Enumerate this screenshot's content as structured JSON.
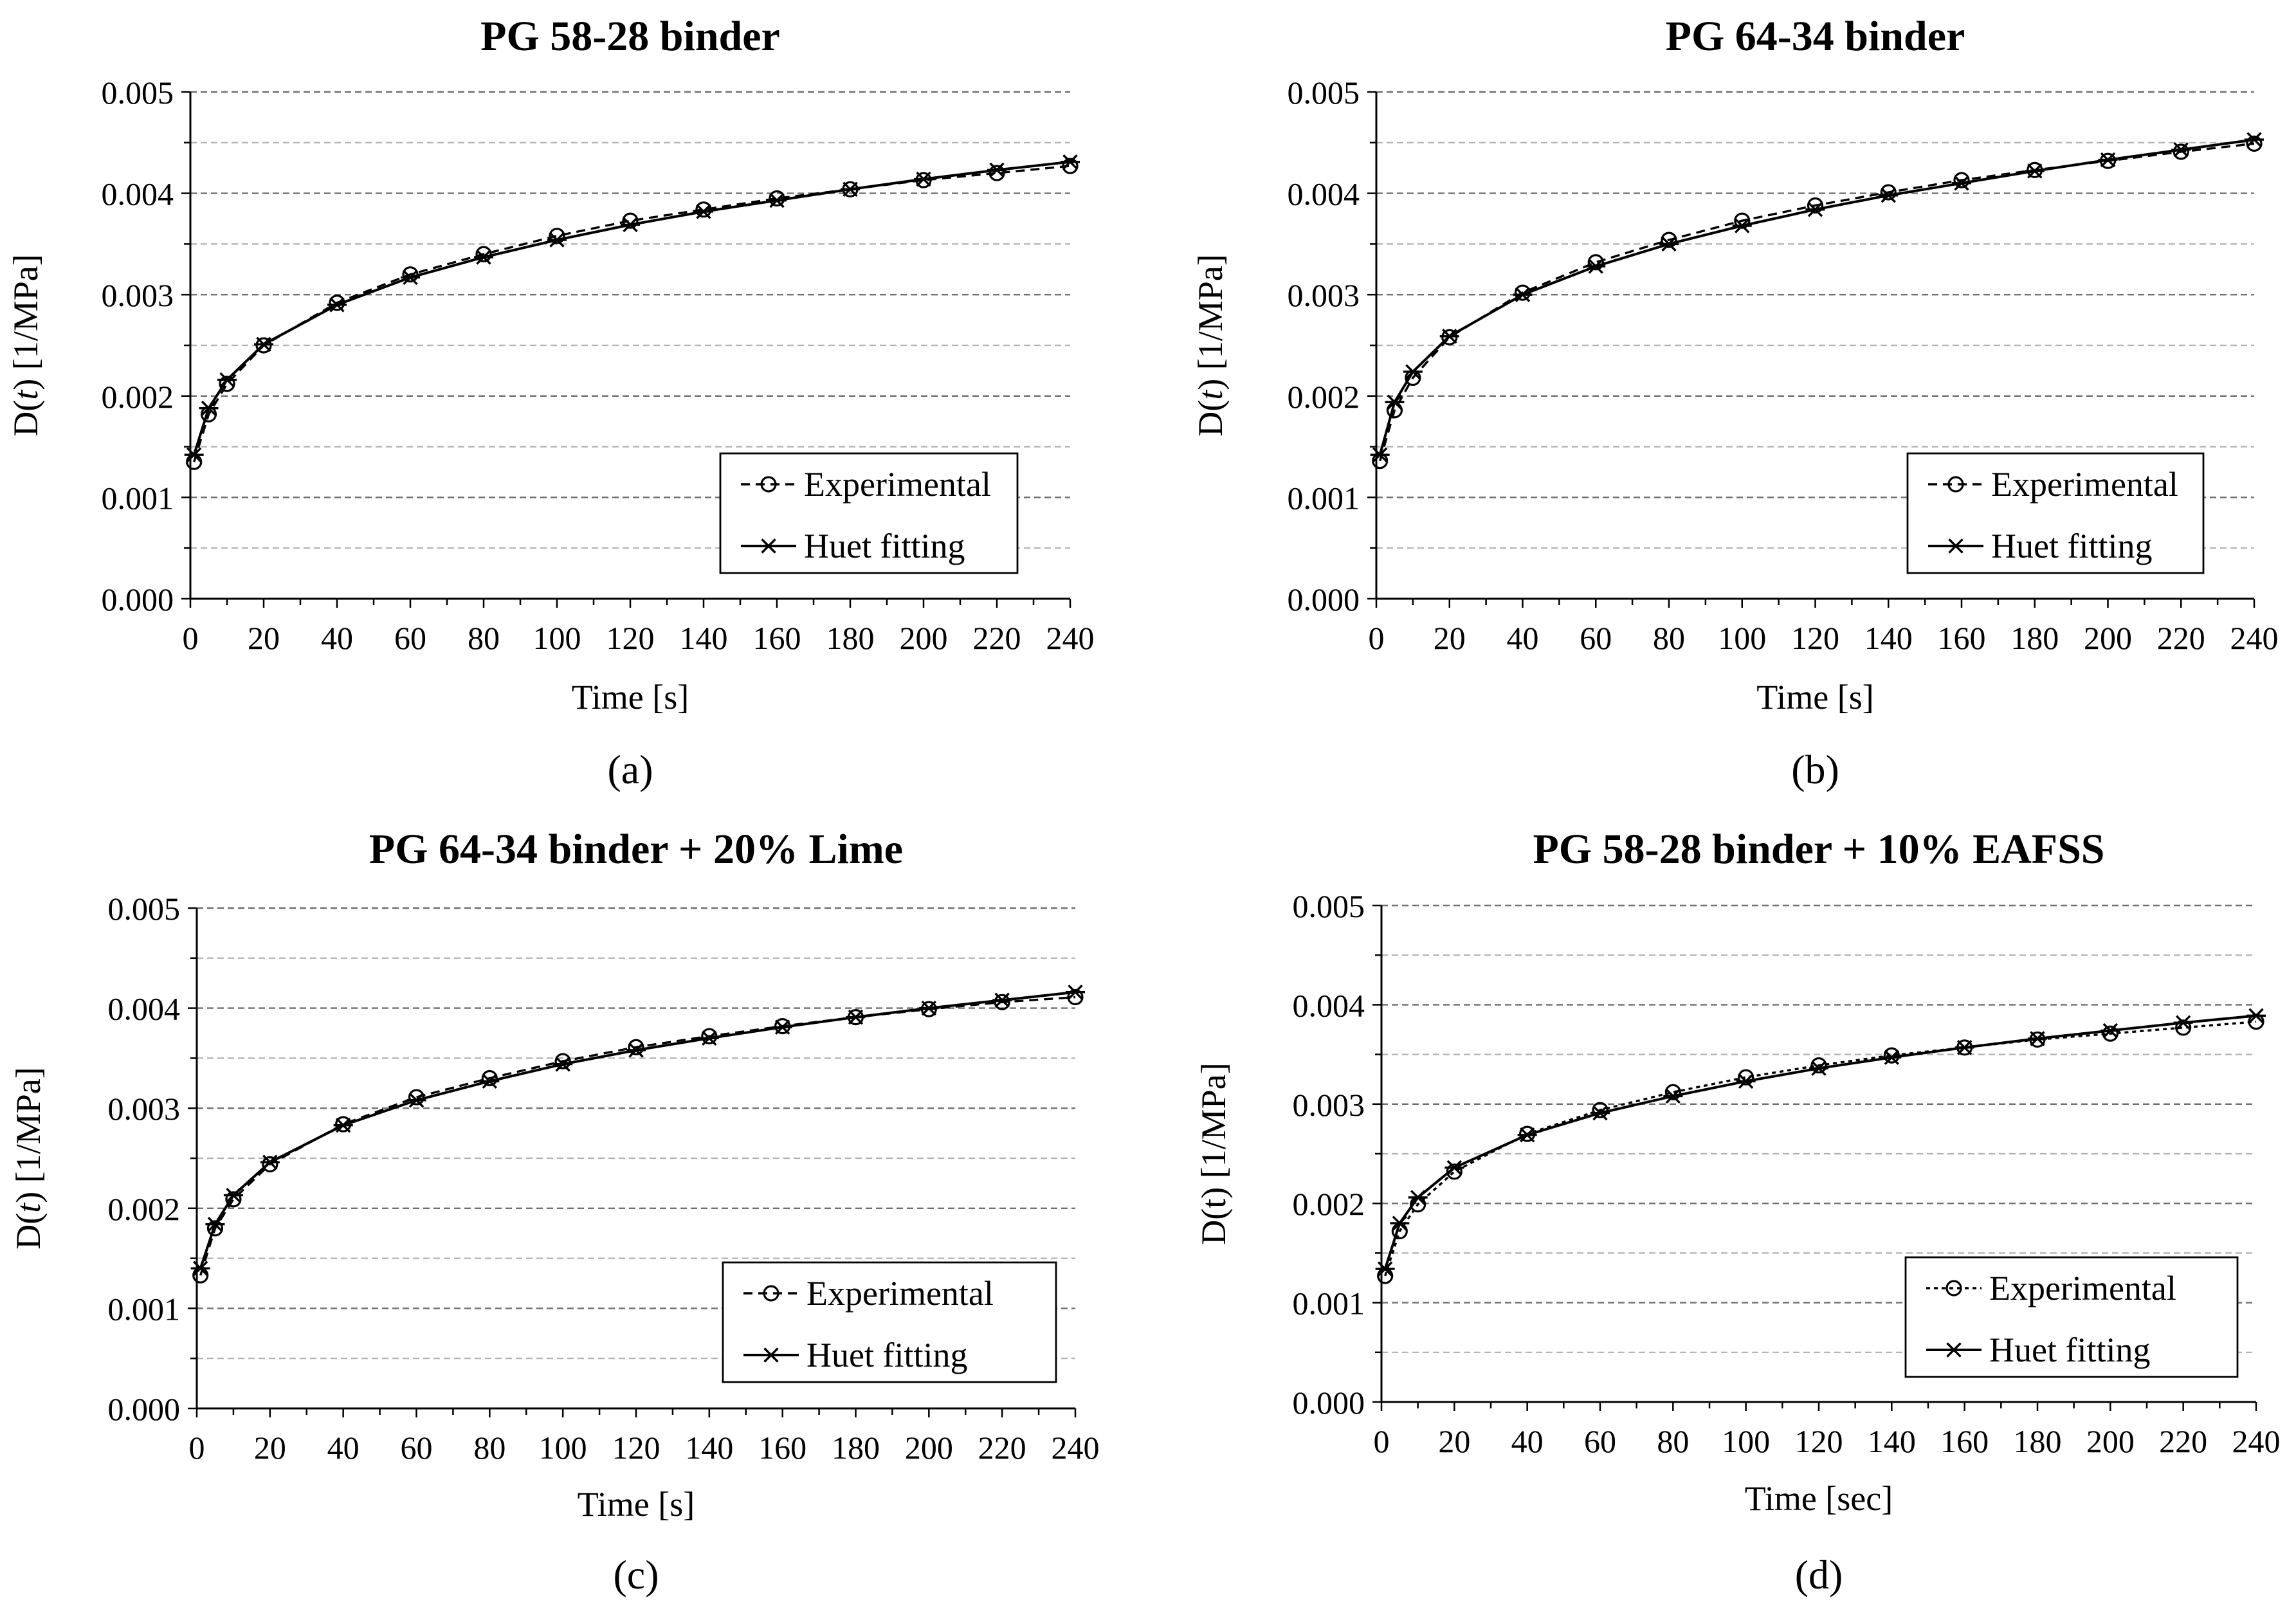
{
  "figure": {
    "description_note": "Four creep compliance panels",
    "colors": {
      "axis": "#000000",
      "major_grid": "#6f6f6f",
      "minor_grid": "#b0b0b0",
      "series": "#000000",
      "background": "#ffffff"
    }
  },
  "chart_data": [
    {
      "panel": "a",
      "caption": "(a)",
      "type": "line",
      "title": "PG 58-28 binder",
      "xlabel": "Time [s]",
      "ylabel_parts": [
        "D(",
        "t",
        ") [1/MPa]"
      ],
      "ylabel_italic_t": true,
      "xlim": [
        0,
        240
      ],
      "ylim": [
        0,
        0.005
      ],
      "x_ticks": [
        0,
        20,
        40,
        60,
        80,
        100,
        120,
        140,
        160,
        180,
        200,
        220,
        240
      ],
      "y_ticks": [
        0,
        0.001,
        0.002,
        0.003,
        0.004,
        0.005
      ],
      "y_tick_labels": [
        "0.000",
        "0.001",
        "0.002",
        "0.003",
        "0.004",
        "0.005"
      ],
      "legend": "bottom-right",
      "series": [
        {
          "name": "Experimental",
          "style": "dashed",
          "marker": "circle",
          "x": [
            1,
            5,
            10,
            20,
            40,
            60,
            80,
            100,
            120,
            140,
            160,
            180,
            200,
            220,
            240
          ],
          "y": [
            0.00135,
            0.00182,
            0.00212,
            0.0025,
            0.00292,
            0.0032,
            0.0034,
            0.00358,
            0.00373,
            0.00384,
            0.00395,
            0.00404,
            0.00413,
            0.0042,
            0.00427
          ]
        },
        {
          "name": "Huet fitting",
          "style": "solid",
          "marker": "asterisk",
          "x": [
            1,
            5,
            10,
            20,
            40,
            60,
            80,
            100,
            120,
            140,
            160,
            180,
            200,
            220,
            240
          ],
          "y": [
            0.00142,
            0.00188,
            0.00216,
            0.00251,
            0.0029,
            0.00317,
            0.00337,
            0.00354,
            0.00369,
            0.00382,
            0.00393,
            0.00404,
            0.00414,
            0.00423,
            0.00431
          ]
        }
      ]
    },
    {
      "panel": "b",
      "caption": "(b)",
      "type": "line",
      "title": "PG 64-34 binder",
      "xlabel": "Time [s]",
      "ylabel_parts": [
        "D(",
        "t",
        ") [1/MPa]"
      ],
      "ylabel_italic_t": true,
      "xlim": [
        0,
        240
      ],
      "ylim": [
        0,
        0.005
      ],
      "x_ticks": [
        0,
        20,
        40,
        60,
        80,
        100,
        120,
        140,
        160,
        180,
        200,
        220,
        240
      ],
      "y_ticks": [
        0,
        0.001,
        0.002,
        0.003,
        0.004,
        0.005
      ],
      "y_tick_labels": [
        "0.000",
        "0.001",
        "0.002",
        "0.003",
        "0.004",
        "0.005"
      ],
      "legend": "bottom-right",
      "series": [
        {
          "name": "Experimental",
          "style": "dashed",
          "marker": "circle",
          "x": [
            1,
            5,
            10,
            20,
            40,
            60,
            80,
            100,
            120,
            140,
            160,
            180,
            200,
            220,
            240
          ],
          "y": [
            0.00136,
            0.00186,
            0.00218,
            0.00258,
            0.00302,
            0.00332,
            0.00354,
            0.00373,
            0.00388,
            0.00401,
            0.00413,
            0.00423,
            0.00432,
            0.00441,
            0.00449
          ]
        },
        {
          "name": "Huet fitting",
          "style": "solid",
          "marker": "asterisk",
          "x": [
            1,
            5,
            10,
            20,
            40,
            60,
            80,
            100,
            120,
            140,
            160,
            180,
            200,
            220,
            240
          ],
          "y": [
            0.00142,
            0.00194,
            0.00224,
            0.00259,
            0.003,
            0.00328,
            0.0035,
            0.00368,
            0.00384,
            0.00398,
            0.0041,
            0.00422,
            0.00433,
            0.00443,
            0.00453
          ]
        }
      ]
    },
    {
      "panel": "c",
      "caption": "(c)",
      "type": "line",
      "title": "PG 64-34 binder + 20% Lime",
      "xlabel": "Time [s]",
      "ylabel_parts": [
        "D(",
        "t",
        ") [1/MPa]"
      ],
      "ylabel_italic_t": true,
      "xlim": [
        0,
        240
      ],
      "ylim": [
        0,
        0.005
      ],
      "x_ticks": [
        0,
        20,
        40,
        60,
        80,
        100,
        120,
        140,
        160,
        180,
        200,
        220,
        240
      ],
      "y_ticks": [
        0,
        0.001,
        0.002,
        0.003,
        0.004,
        0.005
      ],
      "y_tick_labels": [
        "0.000",
        "0.001",
        "0.002",
        "0.003",
        "0.004",
        "0.005"
      ],
      "legend": "bottom-right",
      "series": [
        {
          "name": "Experimental",
          "style": "dashed",
          "marker": "circle",
          "x": [
            1,
            5,
            10,
            20,
            40,
            60,
            80,
            100,
            120,
            140,
            160,
            180,
            200,
            220,
            240
          ],
          "y": [
            0.00133,
            0.0018,
            0.00209,
            0.00244,
            0.00284,
            0.00311,
            0.0033,
            0.00347,
            0.00361,
            0.00372,
            0.00382,
            0.00391,
            0.00399,
            0.00406,
            0.00411
          ]
        },
        {
          "name": "Huet fitting",
          "style": "solid",
          "marker": "asterisk",
          "x": [
            1,
            5,
            10,
            20,
            40,
            60,
            80,
            100,
            120,
            140,
            160,
            180,
            200,
            220,
            240
          ],
          "y": [
            0.0014,
            0.00184,
            0.00213,
            0.00246,
            0.00283,
            0.00308,
            0.00327,
            0.00344,
            0.00358,
            0.0037,
            0.00381,
            0.00391,
            0.004,
            0.00408,
            0.00416
          ]
        }
      ]
    },
    {
      "panel": "d",
      "caption": "(d)",
      "type": "line",
      "title": "PG 58-28 binder + 10% EAFSS",
      "xlabel": "Time [sec]",
      "ylabel_parts": [
        "D(t) [1/MPa]"
      ],
      "ylabel_italic_t": false,
      "xlim": [
        0,
        240
      ],
      "ylim": [
        0,
        0.005
      ],
      "x_ticks": [
        0,
        20,
        40,
        60,
        80,
        100,
        120,
        140,
        160,
        180,
        200,
        220,
        240
      ],
      "y_ticks": [
        0,
        0.001,
        0.002,
        0.003,
        0.004,
        0.005
      ],
      "y_tick_labels": [
        "0.000",
        "0.001",
        "0.002",
        "0.003",
        "0.004",
        "0.005"
      ],
      "legend": "bottom-right",
      "series": [
        {
          "name": "Experimental",
          "style": "dotted",
          "marker": "circle",
          "x": [
            1,
            5,
            10,
            20,
            40,
            60,
            80,
            100,
            120,
            140,
            160,
            180,
            200,
            220,
            240
          ],
          "y": [
            0.00127,
            0.00172,
            0.00199,
            0.00232,
            0.0027,
            0.00294,
            0.00312,
            0.00327,
            0.00339,
            0.00349,
            0.00357,
            0.00365,
            0.00371,
            0.00377,
            0.00383
          ]
        },
        {
          "name": "Huet fitting",
          "style": "solid",
          "marker": "asterisk",
          "x": [
            1,
            5,
            10,
            20,
            40,
            60,
            80,
            100,
            120,
            140,
            160,
            180,
            200,
            220,
            240
          ],
          "y": [
            0.00134,
            0.0018,
            0.00206,
            0.00236,
            0.00269,
            0.00291,
            0.00308,
            0.00323,
            0.00336,
            0.00347,
            0.00357,
            0.00366,
            0.00374,
            0.00382,
            0.00389
          ]
        }
      ]
    }
  ]
}
